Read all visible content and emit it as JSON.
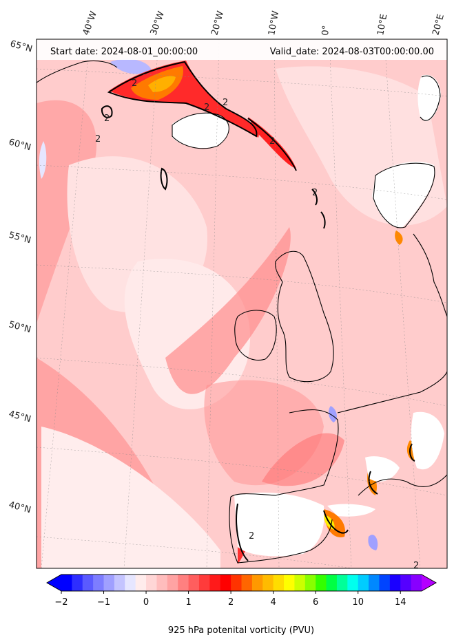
{
  "header": {
    "start_date": "Start date: 2024-08-01_00:00:00",
    "valid_date": "Valid_date: 2024-08-03T00:00:00.00"
  },
  "lon_labels": [
    "40°W",
    "30°W",
    "20°W",
    "10°W",
    "0°",
    "10°E",
    "20°E"
  ],
  "lat_labels": [
    "65°N",
    "60°N",
    "55°N",
    "50°N",
    "45°N",
    "40°N"
  ],
  "contour_label": "2",
  "colorbar": {
    "label": "925 hPa potenital vorticity (PVU)",
    "ticks": [
      "−2",
      "−1",
      "0",
      "1",
      "2",
      "4",
      "6",
      "10",
      "14"
    ],
    "colors": [
      "#0000ff",
      "#2e2eff",
      "#5a5aff",
      "#7d7dff",
      "#a0a0ff",
      "#c4c4ff",
      "#e6e6ff",
      "#ffecec",
      "#ffd6d6",
      "#ffbdbd",
      "#ffa3a3",
      "#ff8080",
      "#ff5e5e",
      "#ff3b3b",
      "#ff1a1a",
      "#ff0000",
      "#ff3300",
      "#ff6600",
      "#ff9900",
      "#ffbb00",
      "#ffdd00",
      "#ffff00",
      "#ccff00",
      "#88ff00",
      "#33ff00",
      "#00ff44",
      "#00ff99",
      "#00ffee",
      "#00ccff",
      "#0088ff",
      "#0044ff",
      "#1a00ff",
      "#5500ff",
      "#8800ff"
    ],
    "under_color": "#0000ff",
    "over_color": "#b400ff"
  }
}
